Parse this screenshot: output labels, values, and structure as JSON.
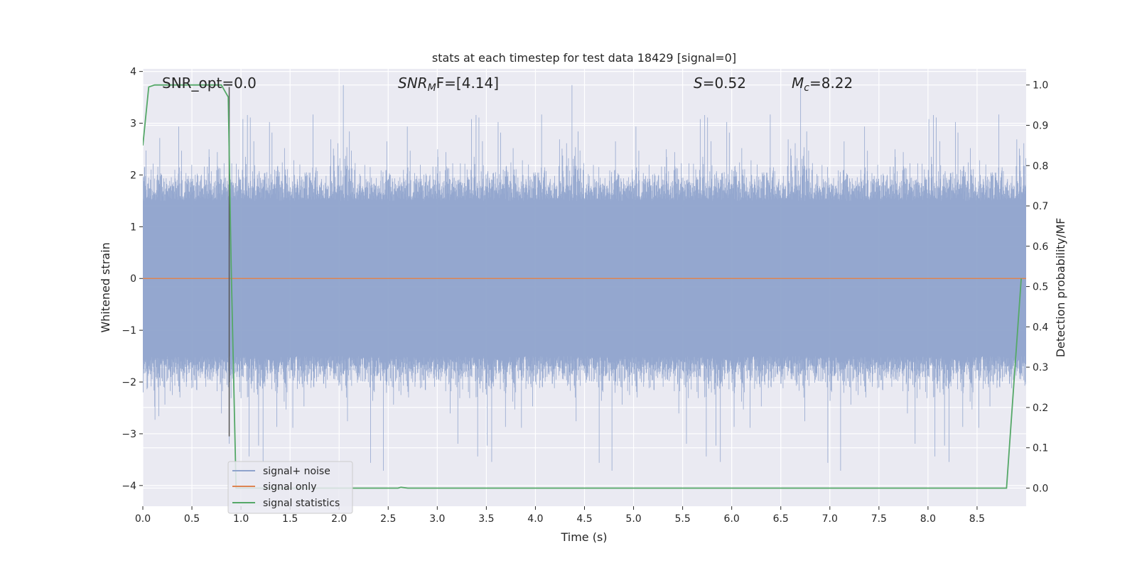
{
  "chart_data": {
    "type": "line",
    "title": "stats at each timestep for test data 18429 [signal=0]",
    "xlabel": "Time (s)",
    "ylabel": "Whitened strain",
    "y2label": "Detection probability/MF",
    "xlim": [
      0,
      9.0
    ],
    "ylim": [
      -4.4,
      4.05
    ],
    "y2lim": [
      -0.045,
      1.04
    ],
    "xticks": [
      "0.0",
      "0.5",
      "1.0",
      "1.5",
      "2.0",
      "2.5",
      "3.0",
      "3.5",
      "4.0",
      "4.5",
      "5.0",
      "5.5",
      "6.0",
      "6.5",
      "7.0",
      "7.5",
      "8.0",
      "8.5"
    ],
    "yticks": [
      "4",
      "3",
      "2",
      "1",
      "0",
      "−1",
      "−2",
      "−3",
      "−4"
    ],
    "y2ticks": [
      "1.0",
      "0.9",
      "0.8",
      "0.7",
      "0.6",
      "0.5",
      "0.4",
      "0.3",
      "0.2",
      "0.1",
      "0.0"
    ],
    "grid": true,
    "legend_position": "lower-left",
    "annotations": {
      "snr_opt": "SNR_opt=0.0",
      "snr_mf_main": "SNR",
      "snr_mf_sub": "M",
      "snr_mf_rest": "F=[4.14]",
      "s_main": "S",
      "s_rest": "=0.52",
      "mc_main": "M",
      "mc_sub": "c",
      "mc_rest": "=8.22"
    },
    "series": [
      {
        "name": "signal+ noise",
        "axis": "left",
        "color": "#8fa3cc",
        "noise_amplitude_typical": 1.5,
        "noise_amplitude_max": 3.8,
        "x_range": [
          0,
          9.0
        ]
      },
      {
        "name": "signal only",
        "axis": "left",
        "color": "#dd8452",
        "x": [
          0,
          9.0
        ],
        "y": [
          0,
          0
        ]
      },
      {
        "name": "signal statistics",
        "axis": "right",
        "color": "#55a868",
        "x": [
          0.0,
          0.06,
          0.12,
          0.4,
          0.8,
          0.87,
          0.9,
          0.95,
          1.0,
          2.6,
          2.63,
          2.7,
          8.8,
          8.95
        ],
        "y": [
          0.85,
          0.995,
          1.0,
          1.0,
          1.0,
          0.97,
          0.55,
          0.0,
          0.0,
          0.0,
          0.002,
          0.0,
          0.0,
          0.52
        ]
      }
    ],
    "marker_line_x": 0.88
  }
}
